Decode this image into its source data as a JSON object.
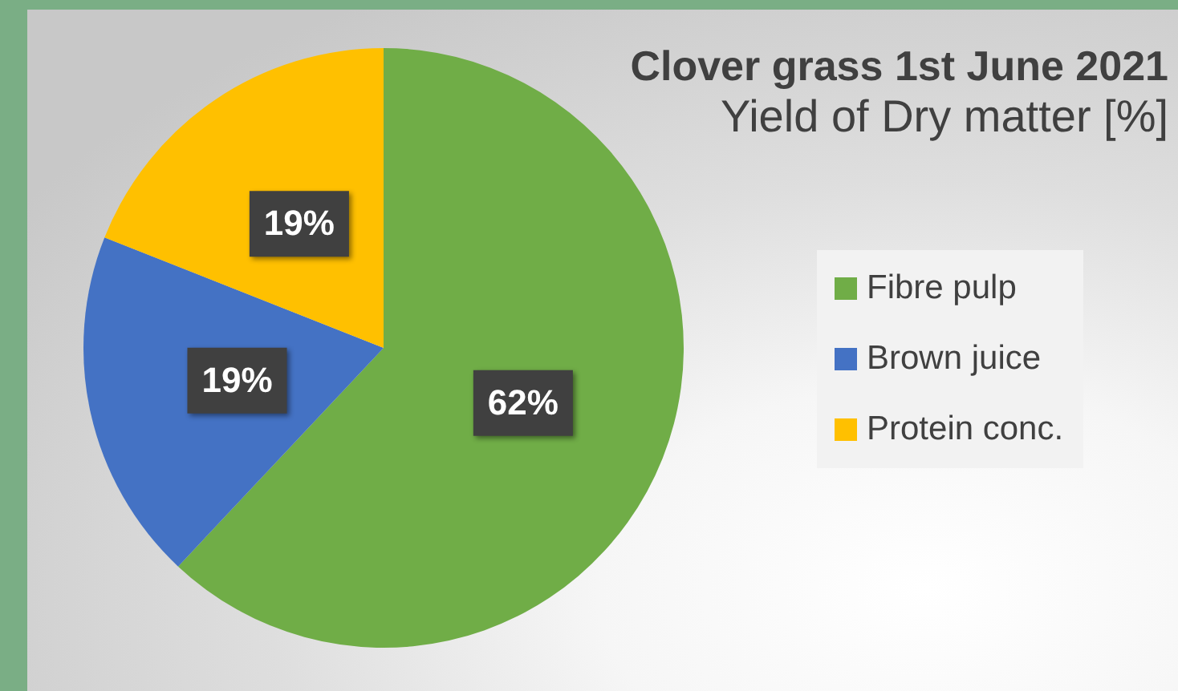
{
  "chart_data": {
    "type": "pie",
    "title": "Clover grass 1st June 2021",
    "subtitle": "Yield of Dry matter [%]",
    "categories": [
      "Fibre pulp",
      "Brown juice",
      "Protein conc."
    ],
    "values": [
      62,
      19,
      19
    ],
    "value_labels": [
      "62%",
      "19%",
      "19%"
    ],
    "colors": [
      "#70ad47",
      "#4472c4",
      "#ffc000"
    ],
    "legend": "right"
  }
}
